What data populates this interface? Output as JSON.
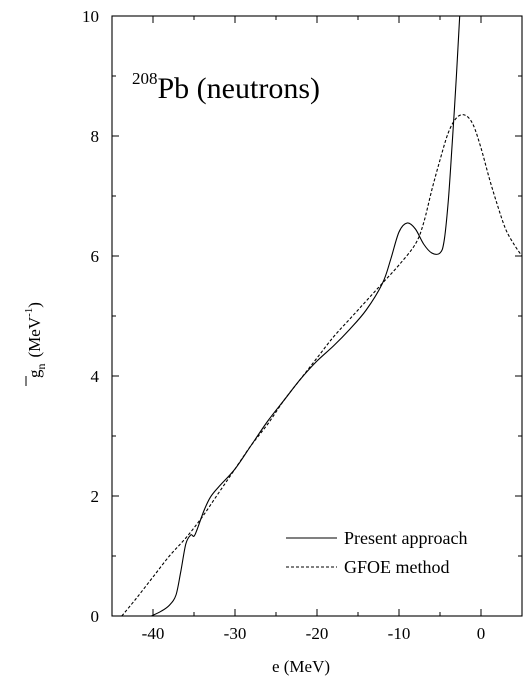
{
  "chart_data": {
    "type": "line",
    "title": "",
    "annotation": {
      "superscript": "208",
      "text": "Pb (neutrons)"
    },
    "xlabel": "e (MeV)",
    "ylabel": {
      "symbol": "g",
      "subscript": "n",
      "unit_open": "(MeV",
      "unit_exp": "-1",
      "unit_close": ")"
    },
    "xlim": [
      -45,
      5
    ],
    "ylim": [
      0,
      10
    ],
    "xticks": [
      -40,
      -30,
      -20,
      -10,
      0
    ],
    "xtick_labels": [
      "-40",
      "-30",
      "-20",
      "-10",
      "0"
    ],
    "yticks": [
      0,
      2,
      4,
      6,
      8,
      10
    ],
    "ytick_labels": [
      "0",
      "2",
      "4",
      "6",
      "8",
      "10"
    ],
    "grid": false,
    "legend_position": "bottom-right",
    "series": [
      {
        "name": "Present approach",
        "style": "solid",
        "color": "#000000",
        "points": [
          [
            -40.2,
            0.0
          ],
          [
            -39.0,
            0.08
          ],
          [
            -38.0,
            0.18
          ],
          [
            -37.2,
            0.35
          ],
          [
            -36.6,
            0.75
          ],
          [
            -36.0,
            1.2
          ],
          [
            -35.4,
            1.35
          ],
          [
            -35.0,
            1.33
          ],
          [
            -34.6,
            1.45
          ],
          [
            -33.8,
            1.75
          ],
          [
            -33.0,
            1.98
          ],
          [
            -32.0,
            2.15
          ],
          [
            -30.0,
            2.45
          ],
          [
            -28.0,
            2.85
          ],
          [
            -26.0,
            3.25
          ],
          [
            -24.0,
            3.6
          ],
          [
            -22.0,
            3.95
          ],
          [
            -20.0,
            4.25
          ],
          [
            -18.0,
            4.5
          ],
          [
            -16.0,
            4.78
          ],
          [
            -14.0,
            5.1
          ],
          [
            -12.0,
            5.55
          ],
          [
            -11.0,
            5.95
          ],
          [
            -10.0,
            6.4
          ],
          [
            -9.0,
            6.55
          ],
          [
            -8.0,
            6.45
          ],
          [
            -7.0,
            6.2
          ],
          [
            -6.0,
            6.05
          ],
          [
            -5.0,
            6.05
          ],
          [
            -4.5,
            6.25
          ],
          [
            -4.0,
            6.9
          ],
          [
            -3.5,
            7.9
          ],
          [
            -3.0,
            9.0
          ],
          [
            -2.6,
            10.0
          ]
        ]
      },
      {
        "name": "GFOE method",
        "style": "dashed",
        "color": "#000000",
        "points": [
          [
            -43.8,
            0.0
          ],
          [
            -42.0,
            0.3
          ],
          [
            -40.0,
            0.65
          ],
          [
            -38.0,
            1.0
          ],
          [
            -36.0,
            1.3
          ],
          [
            -34.0,
            1.65
          ],
          [
            -32.0,
            2.05
          ],
          [
            -30.0,
            2.45
          ],
          [
            -28.0,
            2.85
          ],
          [
            -26.0,
            3.2
          ],
          [
            -24.0,
            3.6
          ],
          [
            -22.0,
            3.95
          ],
          [
            -20.0,
            4.3
          ],
          [
            -18.0,
            4.65
          ],
          [
            -16.0,
            4.95
          ],
          [
            -14.0,
            5.25
          ],
          [
            -12.0,
            5.55
          ],
          [
            -10.0,
            5.85
          ],
          [
            -8.0,
            6.2
          ],
          [
            -7.0,
            6.55
          ],
          [
            -6.0,
            7.1
          ],
          [
            -5.0,
            7.6
          ],
          [
            -4.0,
            8.05
          ],
          [
            -3.0,
            8.3
          ],
          [
            -2.0,
            8.35
          ],
          [
            -1.0,
            8.2
          ],
          [
            0.0,
            7.8
          ],
          [
            1.0,
            7.3
          ],
          [
            2.0,
            6.85
          ],
          [
            3.0,
            6.45
          ],
          [
            4.0,
            6.2
          ],
          [
            5.0,
            6.0
          ]
        ]
      }
    ]
  }
}
